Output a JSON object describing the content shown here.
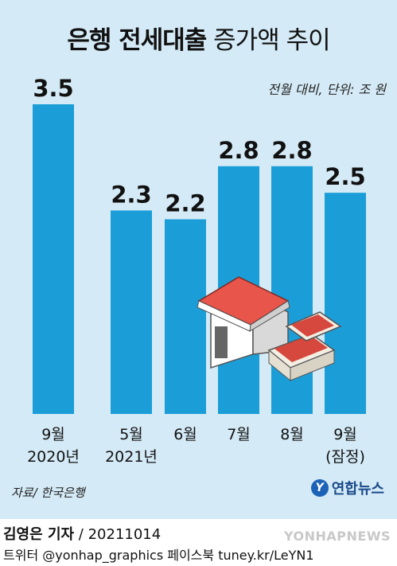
{
  "header": {
    "title_bold": "은행 전세대출",
    "title_light": "증가액 추이",
    "unit": "전월 대비, 단위: 조 원"
  },
  "chart_data": {
    "type": "bar",
    "categories": [
      [
        "9월",
        "2020년"
      ],
      [
        "5월",
        "2021년"
      ],
      [
        "6월",
        ""
      ],
      [
        "7월",
        ""
      ],
      [
        "8월",
        ""
      ],
      [
        "9월",
        "(잠정)"
      ]
    ],
    "values": [
      3.5,
      2.3,
      2.2,
      2.8,
      2.8,
      2.5
    ],
    "value_labels": [
      "3.5",
      "2.3",
      "2.2",
      "2.8",
      "2.8",
      "2.5"
    ],
    "ylim": [
      0,
      3.5
    ],
    "bar_color": "#1b9ed8",
    "grid": false
  },
  "source": "자료/ 한국은행",
  "brand": {
    "name": "연합뉴스",
    "icon": "yonhap-logo-icon"
  },
  "footer": {
    "reporter": "김영은 기자",
    "date": " / 20211014",
    "social": "트위터 @yonhap_graphics  페이스북 tuney.kr/LeYN1",
    "watermark": "YONHAPNEWS"
  },
  "colors": {
    "background": "#d4eaf6",
    "bar": "#1b9ed8"
  }
}
